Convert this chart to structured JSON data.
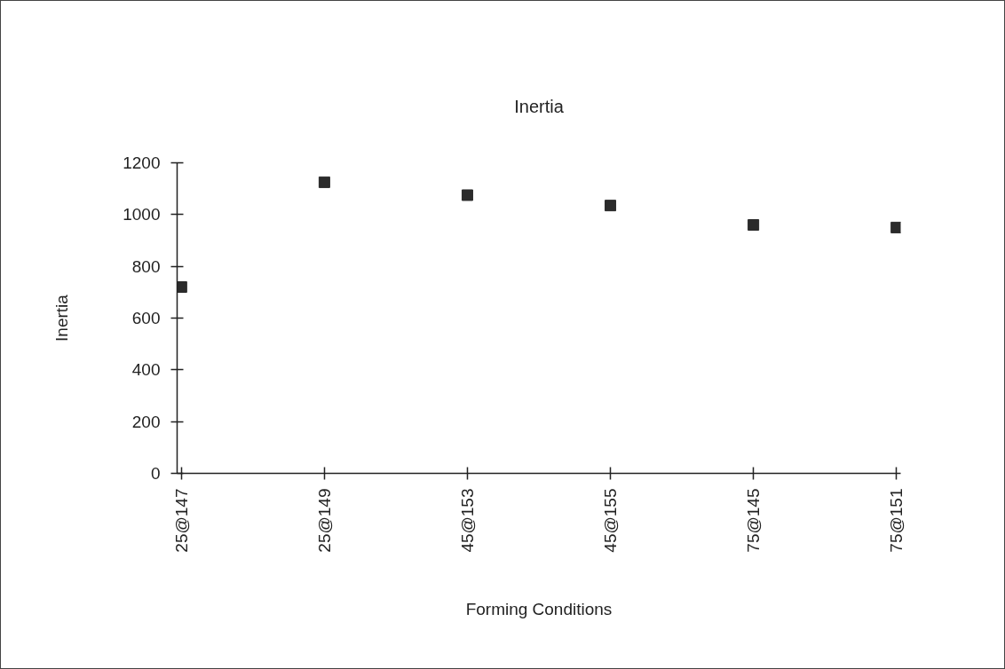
{
  "chart_data": {
    "type": "scatter",
    "title": "Inertia",
    "xlabel": "Forming Conditions",
    "ylabel": "Inertia",
    "categories": [
      "25@147",
      "25@149",
      "45@153",
      "45@155",
      "75@145",
      "75@151"
    ],
    "values": [
      720,
      1125,
      1075,
      1035,
      960,
      950
    ],
    "color": "#2b2b2b",
    "marker": "square",
    "ylim": [
      0,
      1200
    ],
    "yticks": [
      0,
      200,
      400,
      600,
      800,
      1000,
      1200
    ],
    "grid": false
  }
}
